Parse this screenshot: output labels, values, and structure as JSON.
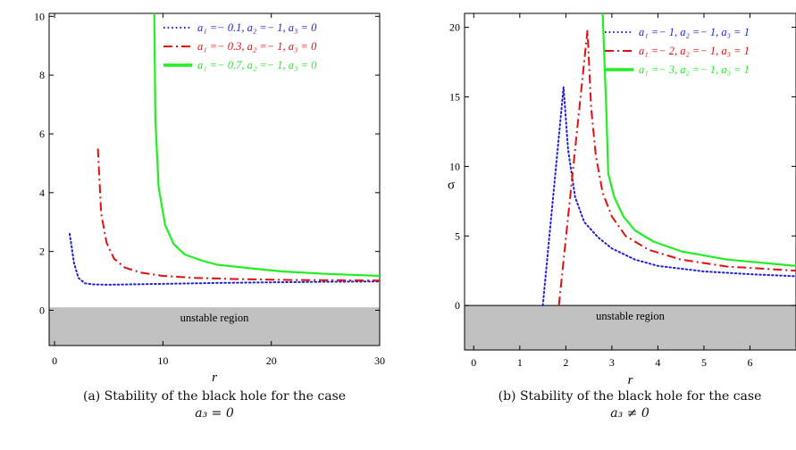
{
  "chart_data": [
    {
      "type": "line",
      "title": "",
      "xlabel": "r",
      "ylabel": "",
      "xlim": [
        -0.5,
        30
      ],
      "ylim": [
        -1.2,
        10.1
      ],
      "xticks": [
        0,
        10,
        20,
        30
      ],
      "xtick_labels": [
        "0",
        "10",
        "20",
        "30"
      ],
      "yticks": [
        0,
        2,
        4,
        6,
        8,
        10
      ],
      "ytick_labels": [
        "0",
        "2",
        "4",
        "6",
        "8",
        "10"
      ],
      "shaded_region": {
        "label": "unstable region",
        "y_from": -1.2,
        "y_to": 0.1
      },
      "legend_position": "top-right",
      "series": [
        {
          "name": "a1 = -0.1, a2 = -1, a3 = 0",
          "legend_text": "a₁ =− 0.1, a₂ =− 1, a₃ = 0",
          "color": "#1f1fd8",
          "style": "dotted",
          "x": [
            1.4,
            1.8,
            2.2,
            2.8,
            3.5,
            5,
            7,
            10,
            15,
            20,
            25,
            30
          ],
          "y": [
            2.6,
            1.6,
            1.1,
            0.92,
            0.88,
            0.87,
            0.88,
            0.9,
            0.93,
            0.95,
            0.97,
            0.98
          ]
        },
        {
          "name": "a1 = -0.3, a2 = -1, a3 = 0",
          "legend_text": "a₁ =− 0.3, a₂ =− 1, a₃ = 0",
          "color": "#e01010",
          "style": "dashdot",
          "x": [
            4.0,
            4.3,
            4.8,
            5.5,
            6.5,
            8,
            10,
            13,
            17,
            22,
            26,
            30
          ],
          "y": [
            5.5,
            3.3,
            2.3,
            1.75,
            1.45,
            1.28,
            1.17,
            1.1,
            1.06,
            1.03,
            1.02,
            1.01
          ]
        },
        {
          "name": "a1 = -0.7, a2 = -1, a3 = 0",
          "legend_text": "a₁ =− 0.7, a₂ =− 1, a₃ = 0",
          "color": "#22ee22",
          "style": "solid",
          "x": [
            9.2,
            9.3,
            9.6,
            10.2,
            11,
            12,
            13.5,
            15,
            18,
            21,
            25,
            30
          ],
          "y": [
            10.1,
            6.5,
            4.2,
            2.9,
            2.25,
            1.9,
            1.7,
            1.55,
            1.43,
            1.32,
            1.24,
            1.17
          ]
        }
      ]
    },
    {
      "type": "line",
      "title": "",
      "xlabel": "r",
      "ylabel": "σ",
      "xlim": [
        -0.2,
        7.0
      ],
      "ylim": [
        -3.2,
        21
      ],
      "xticks": [
        0,
        1,
        2,
        3,
        4,
        5,
        6
      ],
      "xtick_labels": [
        "0",
        "1",
        "2",
        "3",
        "4",
        "5",
        "6"
      ],
      "yticks": [
        0,
        5,
        10,
        15,
        20
      ],
      "ytick_labels": [
        "0",
        "5",
        "10",
        "15",
        "20"
      ],
      "shaded_region": {
        "label": "unstable region",
        "y_from": -3.2,
        "y_to": 0
      },
      "legend_position": "top-right",
      "series": [
        {
          "name": "a1 = -1, a2 = -1, a3 = 1",
          "legend_text": "a₁ =− 1, a₂ =− 1, a₃ = 1",
          "color": "#1f1fd8",
          "style": "dotted",
          "x": [
            1.5,
            1.95,
            2.05,
            2.2,
            2.4,
            2.7,
            3.0,
            3.5,
            4.0,
            5.0,
            6.0,
            7.0
          ],
          "y": [
            0,
            15.7,
            11.2,
            7.8,
            6.0,
            4.9,
            4.1,
            3.3,
            2.85,
            2.45,
            2.25,
            2.1
          ]
        },
        {
          "name": "a1 = -2, a2 = -1, a3 = 1",
          "legend_text": "a₁ =− 2, a₂ =− 1, a₃ = 1",
          "color": "#e01010",
          "style": "dashdot",
          "x": [
            1.85,
            2.47,
            2.55,
            2.65,
            2.8,
            3.0,
            3.3,
            3.8,
            4.5,
            5.5,
            7.0
          ],
          "y": [
            0,
            19.8,
            14.2,
            10.8,
            8.1,
            6.4,
            5.0,
            4.0,
            3.3,
            2.8,
            2.5
          ]
        },
        {
          "name": "a1 = -3, a2 = -1, a3 = 1",
          "legend_text": "a₁ =− 3, a₂ =− 1, a₃ = 1",
          "color": "#22ee22",
          "style": "solid",
          "x": [
            2.8,
            2.88,
            2.92,
            3.05,
            3.25,
            3.5,
            3.9,
            4.5,
            5.5,
            7.0
          ],
          "y": [
            21,
            14,
            9.5,
            7.8,
            6.4,
            5.4,
            4.6,
            3.9,
            3.3,
            2.85
          ]
        }
      ]
    }
  ],
  "captions": [
    {
      "prefix": "(a) Stability of the black hole for the case",
      "math": "a₃ = 0"
    },
    {
      "prefix": "(b) Stability of the black hole for the case",
      "math": "a₃ ≠ 0"
    }
  ]
}
